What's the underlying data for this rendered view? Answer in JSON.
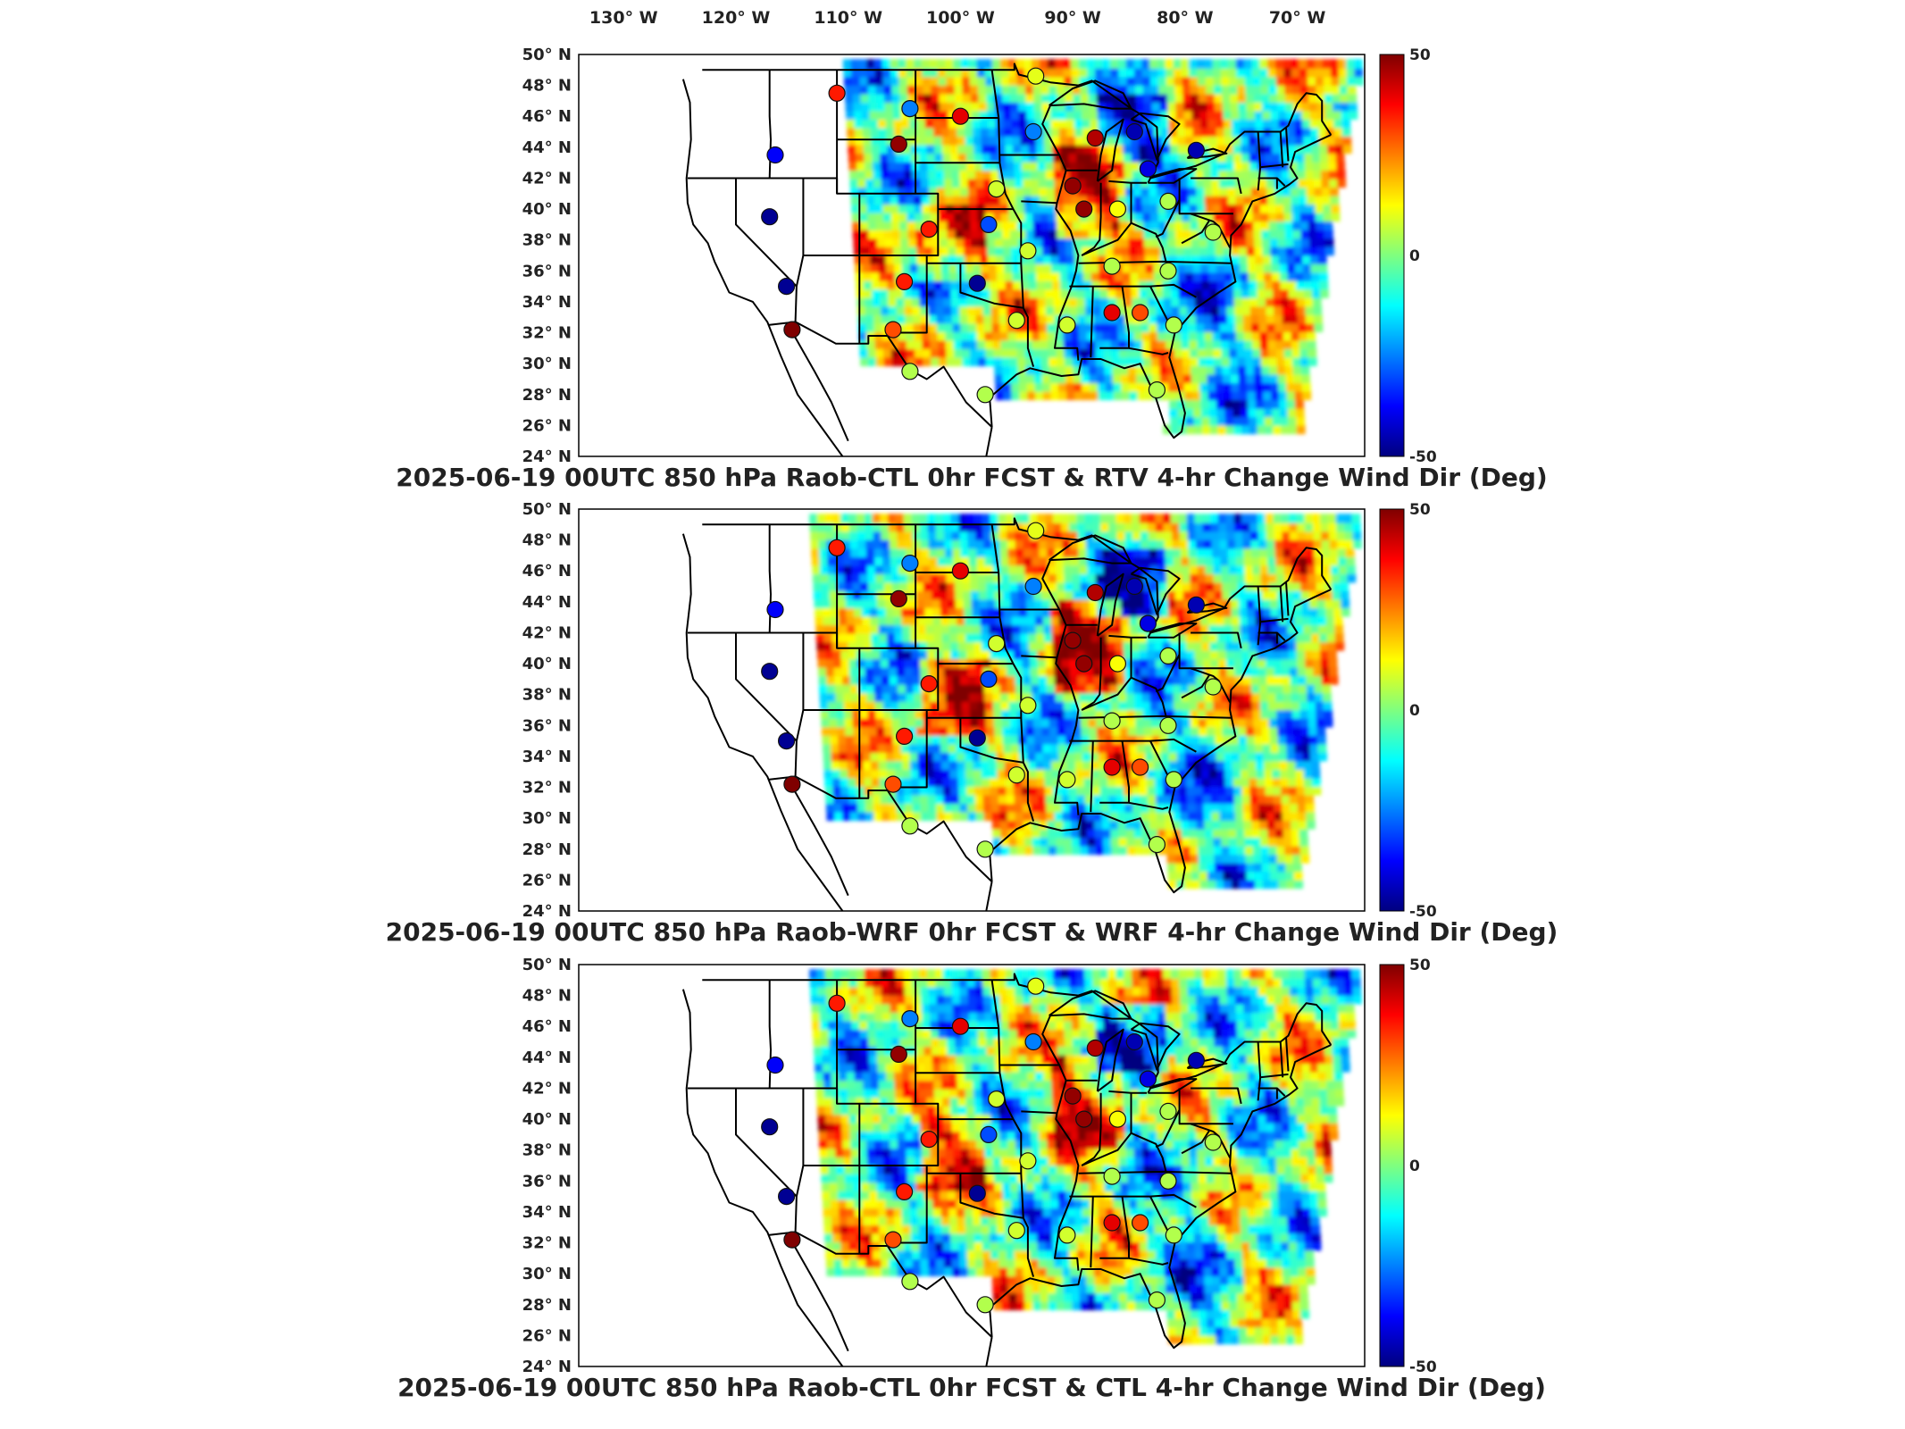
{
  "lon_labels": [
    "130",
    "120",
    "110",
    "100",
    "90",
    "80",
    "70"
  ],
  "lon_suffix": "W",
  "lat_labels": [
    "50",
    "48",
    "46",
    "44",
    "42",
    "40",
    "38",
    "36",
    "34",
    "32",
    "30",
    "28",
    "26",
    "24"
  ],
  "lat_suffix": "N",
  "degree_symbol": "°",
  "colorbar": {
    "max_label": "50",
    "mid_label": "0",
    "min_label": "-50",
    "colors": [
      "#00007f",
      "#0000ff",
      "#007fff",
      "#00ffff",
      "#7fff7f",
      "#ffff00",
      "#ff7f00",
      "#ff0000",
      "#7f0000"
    ]
  },
  "panels": [
    {
      "id": "rtv",
      "title": "2025-06-19 00UTC 850 hPa Raob-CTL 0hr FCST & RTV 4-hr Change Wind Dir (Deg)"
    },
    {
      "id": "wrf",
      "title": "2025-06-19 00UTC 850 hPa Raob-WRF 0hr FCST & WRF 4-hr Change Wind Dir (Deg)"
    },
    {
      "id": "ctl",
      "title": "2025-06-19 00UTC 850 hPa Raob-CTL 0hr FCST & CTL 4-hr Change Wind Dir (Deg)"
    }
  ],
  "stations": [
    {
      "lon": -111.0,
      "lat": 47.5,
      "v": [
        35,
        35,
        35
      ]
    },
    {
      "lon": -104.5,
      "lat": 46.5,
      "v": [
        -25,
        -25,
        -25
      ]
    },
    {
      "lon": -100.0,
      "lat": 46.0,
      "v": [
        40,
        40,
        40
      ]
    },
    {
      "lon": -93.3,
      "lat": 48.6,
      "v": [
        10,
        10,
        10
      ]
    },
    {
      "lon": -93.5,
      "lat": 45.0,
      "v": [
        -25,
        -25,
        -25
      ]
    },
    {
      "lon": -88.0,
      "lat": 44.6,
      "v": [
        45,
        45,
        45
      ]
    },
    {
      "lon": -84.5,
      "lat": 45.0,
      "v": [
        -45,
        -45,
        -45
      ]
    },
    {
      "lon": -83.3,
      "lat": 42.6,
      "v": [
        -40,
        -40,
        -40
      ]
    },
    {
      "lon": -79.0,
      "lat": 43.8,
      "v": [
        -45,
        -45,
        -45
      ]
    },
    {
      "lon": -105.5,
      "lat": 44.2,
      "v": [
        48,
        48,
        48
      ]
    },
    {
      "lon": -116.5,
      "lat": 43.5,
      "v": [
        -38,
        -38,
        -38
      ]
    },
    {
      "lon": -96.8,
      "lat": 41.3,
      "v": [
        8,
        8,
        8
      ]
    },
    {
      "lon": -90.0,
      "lat": 41.5,
      "v": [
        48,
        48,
        48
      ]
    },
    {
      "lon": -89.0,
      "lat": 40.0,
      "v": [
        48,
        48,
        48
      ]
    },
    {
      "lon": -86.0,
      "lat": 40.0,
      "v": [
        12,
        12,
        12
      ]
    },
    {
      "lon": -81.5,
      "lat": 40.5,
      "v": [
        5,
        5,
        5
      ]
    },
    {
      "lon": -117.0,
      "lat": 39.5,
      "v": [
        -48,
        -48,
        -48
      ]
    },
    {
      "lon": -102.8,
      "lat": 38.7,
      "v": [
        35,
        35,
        35
      ]
    },
    {
      "lon": -97.5,
      "lat": 39.0,
      "v": [
        -30,
        -30,
        -30
      ]
    },
    {
      "lon": -94.0,
      "lat": 37.3,
      "v": [
        8,
        8,
        8
      ]
    },
    {
      "lon": -77.5,
      "lat": 38.5,
      "v": [
        5,
        5,
        5
      ]
    },
    {
      "lon": -115.5,
      "lat": 35.0,
      "v": [
        -48,
        -48,
        -48
      ]
    },
    {
      "lon": -105.0,
      "lat": 35.3,
      "v": [
        35,
        35,
        35
      ]
    },
    {
      "lon": -98.5,
      "lat": 35.2,
      "v": [
        -48,
        -48,
        -48
      ]
    },
    {
      "lon": -86.5,
      "lat": 36.3,
      "v": [
        5,
        5,
        5
      ]
    },
    {
      "lon": -81.5,
      "lat": 36.0,
      "v": [
        5,
        5,
        5
      ]
    },
    {
      "lon": -115.0,
      "lat": 32.2,
      "v": [
        50,
        50,
        50
      ]
    },
    {
      "lon": -106.0,
      "lat": 32.2,
      "v": [
        30,
        30,
        30
      ]
    },
    {
      "lon": -95.0,
      "lat": 32.8,
      "v": [
        8,
        8,
        8
      ]
    },
    {
      "lon": -90.5,
      "lat": 32.5,
      "v": [
        8,
        8,
        8
      ]
    },
    {
      "lon": -86.5,
      "lat": 33.3,
      "v": [
        40,
        40,
        40
      ]
    },
    {
      "lon": -84.0,
      "lat": 33.3,
      "v": [
        30,
        30,
        30
      ]
    },
    {
      "lon": -81.0,
      "lat": 32.5,
      "v": [
        5,
        5,
        5
      ]
    },
    {
      "lon": -104.5,
      "lat": 29.5,
      "v": [
        5,
        5,
        5
      ]
    },
    {
      "lon": -97.8,
      "lat": 28.0,
      "v": [
        5,
        5,
        5
      ]
    },
    {
      "lon": -82.5,
      "lat": 28.3,
      "v": [
        5,
        5,
        5
      ]
    }
  ]
}
